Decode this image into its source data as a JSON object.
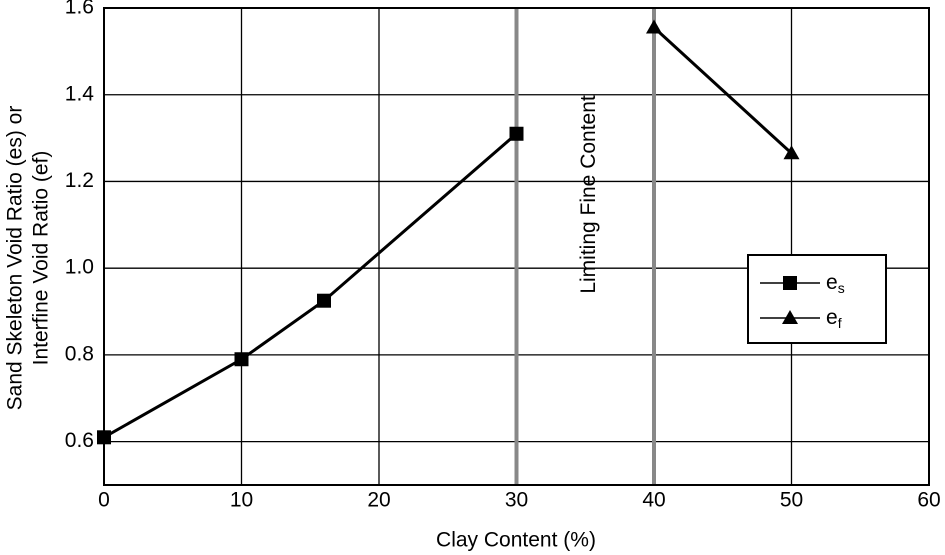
{
  "chart_data": {
    "type": "line",
    "xlabel": "Clay Content (%)",
    "ylabel": [
      "Sand Skeleton Void Ratio (es) or",
      "Interfine Void Ratio (ef)"
    ],
    "annotation": "Limiting Fine Content",
    "xlim": [
      0,
      60
    ],
    "xticks": [
      0,
      10,
      20,
      30,
      40,
      50,
      60
    ],
    "ylim": [
      0.5,
      1.6
    ],
    "yticks": [
      0.6,
      0.8,
      {
        "value": 1,
        "label": "1.0"
      },
      1.2,
      1.4,
      1.6
    ],
    "grid": true,
    "vlines": [
      30,
      40
    ],
    "series": [
      {
        "name": "es",
        "color": "#000000",
        "marker": "square",
        "x": [
          0,
          10,
          16,
          30
        ],
        "values": [
          0.61,
          0.79,
          0.925,
          1.31
        ]
      },
      {
        "name": "ef",
        "color": "#000000",
        "marker": "triangle",
        "x": [
          40,
          50
        ],
        "values": [
          1.555,
          1.265
        ]
      }
    ]
  }
}
